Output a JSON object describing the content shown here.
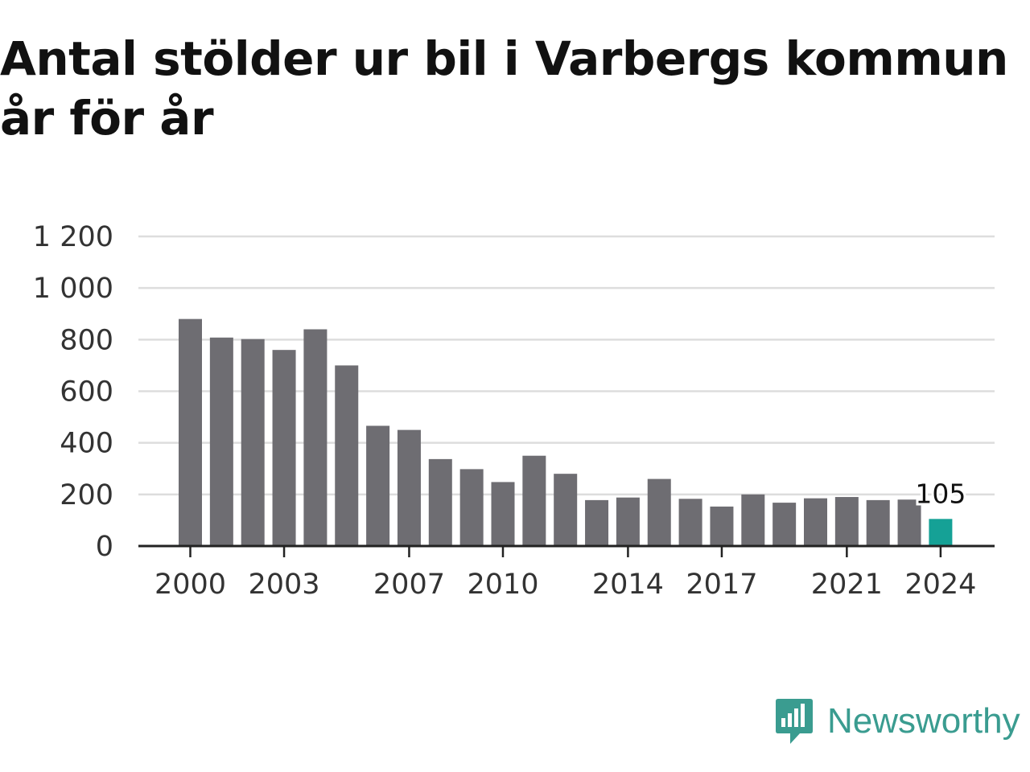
{
  "title": "Antal stölder ur bil i Varbergs kommun år för år",
  "brand": {
    "name": "Newsworthy",
    "icon": "newsworthy-logo-icon",
    "color": "#3a9c90"
  },
  "colors": {
    "bar": "#6e6d72",
    "highlight": "#15a196",
    "grid": "#dddddd",
    "axis": "#222222"
  },
  "chart_data": {
    "type": "bar",
    "title": "Antal stölder ur bil i Varbergs kommun år för år",
    "xlabel": "",
    "ylabel": "",
    "categories": [
      2000,
      2001,
      2002,
      2003,
      2004,
      2005,
      2006,
      2007,
      2008,
      2009,
      2010,
      2011,
      2012,
      2013,
      2014,
      2015,
      2016,
      2017,
      2018,
      2019,
      2020,
      2021,
      2022,
      2023,
      2024
    ],
    "values": [
      880,
      808,
      802,
      760,
      840,
      700,
      466,
      450,
      337,
      298,
      248,
      350,
      280,
      178,
      188,
      260,
      183,
      153,
      200,
      168,
      185,
      190,
      178,
      180,
      105
    ],
    "x_tick_labels": [
      "2000",
      "2003",
      "2007",
      "2010",
      "2014",
      "2017",
      "2021",
      "2024"
    ],
    "y_ticks": [
      0,
      200,
      400,
      600,
      800,
      1000,
      1200
    ],
    "y_tick_labels": [
      "0",
      "200",
      "400",
      "600",
      "800",
      "1 000",
      "1 200"
    ],
    "ylim": [
      0,
      1200
    ],
    "grid": true,
    "highlight": {
      "category": 2024,
      "value": 105,
      "label": "105"
    }
  }
}
